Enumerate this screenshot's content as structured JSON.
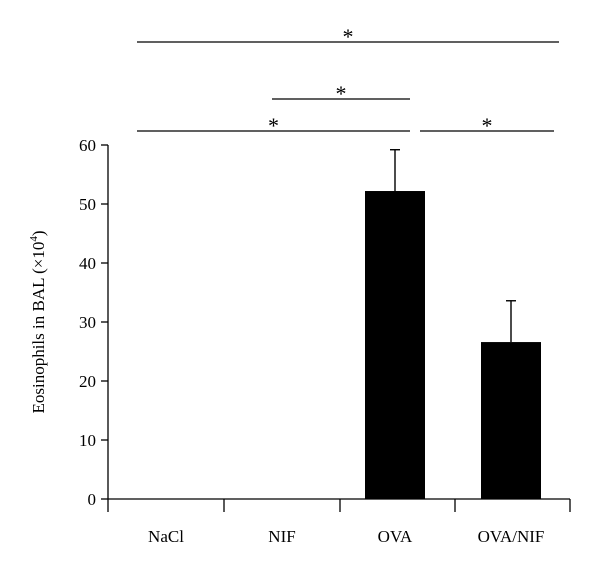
{
  "chart_data": {
    "type": "bar",
    "categories": [
      "NaCl",
      "NIF",
      "OVA",
      "OVA/NIF"
    ],
    "values": [
      0,
      0,
      52.2,
      26.6
    ],
    "errors": [
      0,
      0,
      7.0,
      7.0
    ],
    "title": "",
    "xlabel": "",
    "ylabel": "Eosinophils in BAL (×10",
    "ylabel_superscript": "4",
    "ylabel_suffix": ")",
    "ylim": [
      0,
      60
    ],
    "yticks": [
      0,
      10,
      20,
      30,
      40,
      50,
      60
    ],
    "bar_color": "#000000",
    "grid": false,
    "legend": "none",
    "significance": [
      {
        "from": "NaCl",
        "to": "OVA/NIF",
        "label": "*"
      },
      {
        "from": "NIF",
        "to": "OVA",
        "label": "*"
      },
      {
        "from": "NaCl",
        "to": "OVA",
        "label": "*"
      },
      {
        "from": "OVA",
        "to": "OVA/NIF",
        "label": "*"
      }
    ]
  }
}
